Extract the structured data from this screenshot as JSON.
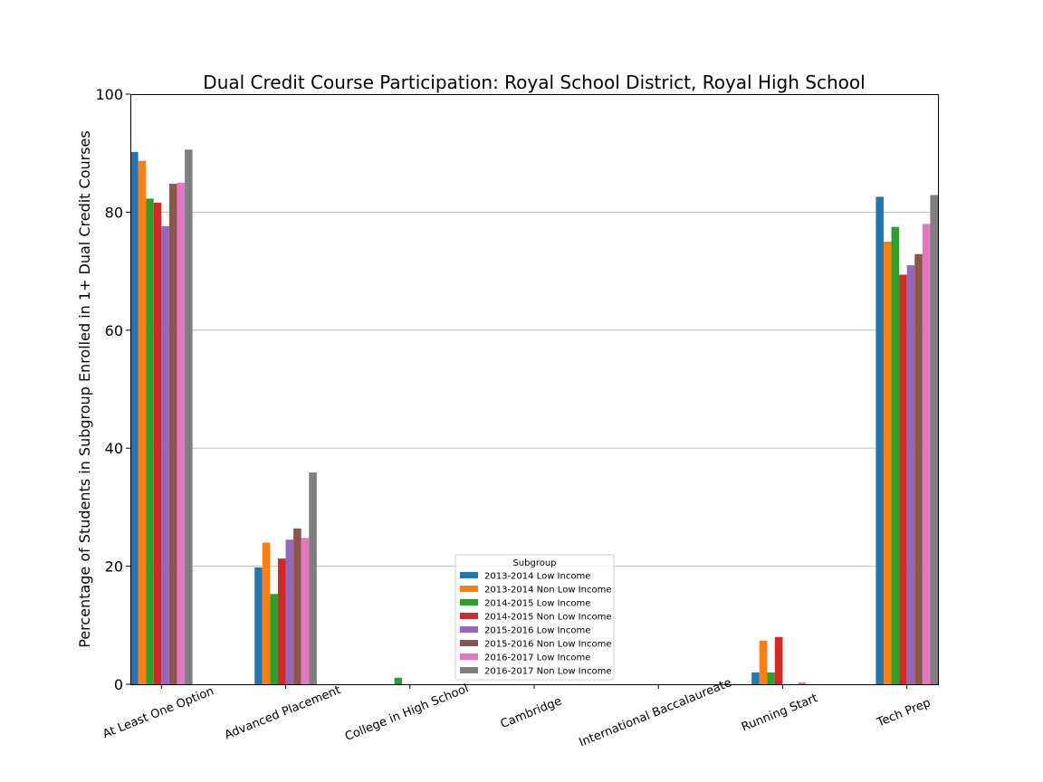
{
  "chart_data": {
    "type": "bar",
    "title": "Dual Credit Course Participation: Royal School District, Royal High School",
    "ylabel": "Percentage of Students in Subgroup Enrolled in 1+ Dual Credit Courses",
    "xlabel": "",
    "ylim": [
      0,
      100
    ],
    "yticks": [
      0,
      20,
      40,
      60,
      80,
      100
    ],
    "grid": "horizontal",
    "categories": [
      "At Least One Option",
      "Advanced Placement",
      "College in High School",
      "Cambridge",
      "International Baccalaureate",
      "Running Start",
      "Tech Prep"
    ],
    "legend": {
      "title": "Subgroup",
      "placement": "bottom-center"
    },
    "series": [
      {
        "name": "2013-2014 Low Income",
        "color": "#1f77b4",
        "values": [
          90.2,
          19.8,
          0,
          0,
          0,
          2.0,
          82.6
        ]
      },
      {
        "name": "2013-2014 Non Low Income",
        "color": "#ff7f0e",
        "values": [
          88.7,
          24.0,
          0,
          0,
          0,
          7.4,
          75.0
        ]
      },
      {
        "name": "2014-2015 Low Income",
        "color": "#2ca02c",
        "values": [
          82.3,
          15.3,
          1.1,
          0,
          0,
          2.0,
          77.5
        ]
      },
      {
        "name": "2014-2015 Non Low Income",
        "color": "#d62728",
        "values": [
          81.6,
          21.3,
          0,
          0,
          0,
          8.0,
          69.4
        ]
      },
      {
        "name": "2015-2016 Low Income",
        "color": "#9467bd",
        "values": [
          77.6,
          24.5,
          0,
          0,
          0,
          0,
          71.0
        ]
      },
      {
        "name": "2015-2016 Non Low Income",
        "color": "#8c564b",
        "values": [
          84.8,
          26.4,
          0,
          0,
          0,
          0,
          72.9
        ]
      },
      {
        "name": "2016-2017 Low Income",
        "color": "#e377c2",
        "values": [
          85.0,
          24.8,
          0,
          0,
          0,
          0.3,
          78.0
        ]
      },
      {
        "name": "2016-2017 Non Low Income",
        "color": "#7f7f7f",
        "values": [
          90.6,
          35.9,
          0,
          0,
          0,
          0,
          82.9
        ]
      }
    ]
  }
}
